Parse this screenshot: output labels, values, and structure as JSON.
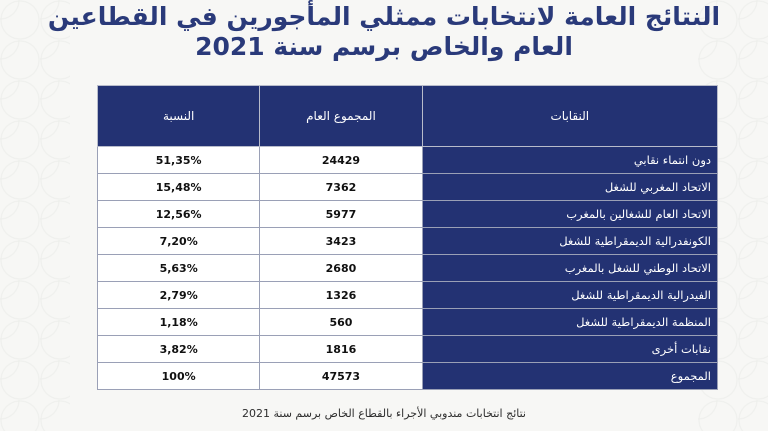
{
  "title": {
    "line1": "النتائج العامة لانتخابات ممثلي المأجورين في القطاعين",
    "line2": "العام والخاص برسم سنة 2021"
  },
  "table": {
    "headers": {
      "union": "النقابات",
      "total": "المجموع العام",
      "percent": "النسبة"
    },
    "rows": [
      {
        "union": "دون انتماء نقابي",
        "total": "24429",
        "percent": "51,35%"
      },
      {
        "union": "الاتحاد المغربي للشغل",
        "total": "7362",
        "percent": "15,48%"
      },
      {
        "union": "الاتحاد العام للشغالين بالمغرب",
        "total": "5977",
        "percent": "12,56%"
      },
      {
        "union": "الكونفدرالية الديمقراطية للشغل",
        "total": "3423",
        "percent": "7,20%"
      },
      {
        "union": "الاتحاد الوطني للشغل بالمغرب",
        "total": "2680",
        "percent": "5,63%"
      },
      {
        "union": "الفيدرالية الديمقراطية للشغل",
        "total": "1326",
        "percent": "2,79%"
      },
      {
        "union": "المنظمة الديمقراطية للشغل",
        "total": "560",
        "percent": "1,18%"
      },
      {
        "union": "نقابات أخرى",
        "total": "1816",
        "percent": "3,82%"
      },
      {
        "union": "المجموع",
        "total": "47573",
        "percent": "100%"
      }
    ]
  },
  "footer": "نتائج انتخابات مندوبي الأجراء بالقطاع الخاص برسم سنة 2021",
  "colors": {
    "header_bg": "#233273",
    "title": "#2a3a7a"
  }
}
